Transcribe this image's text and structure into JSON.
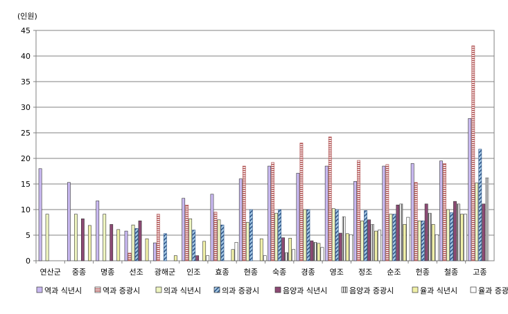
{
  "chart_data": {
    "type": "bar",
    "unit_label": "(인원)",
    "categories": [
      "연산군",
      "중종",
      "명종",
      "선조",
      "광해군",
      "인조",
      "효종",
      "현종",
      "숙종",
      "경종",
      "영조",
      "정조",
      "순조",
      "헌종",
      "철종",
      "고종"
    ],
    "ylim": [
      0,
      45
    ],
    "yticks": [
      0,
      5,
      10,
      15,
      20,
      25,
      30,
      35,
      40,
      45
    ],
    "grid": true,
    "legend_position": "bottom",
    "series": [
      {
        "name": "역과 식년시",
        "color": "#c8b8f0",
        "pattern": "solid",
        "values": [
          18,
          15.3,
          11.7,
          5.8,
          3.5,
          12.2,
          13,
          16,
          18.5,
          17.1,
          18.5,
          15.5,
          18.5,
          19,
          19.5,
          27.8
        ]
      },
      {
        "name": "역과 증광시",
        "color": "#b05050",
        "pattern": "hstripe",
        "values": [
          0,
          0,
          0,
          1.5,
          9.1,
          10.9,
          9.5,
          18.5,
          19.2,
          23,
          24.2,
          19.6,
          18.8,
          15.3,
          19,
          42
        ]
      },
      {
        "name": "의과 식년시",
        "color": "#eef5c0",
        "pattern": "solid",
        "values": [
          9.1,
          9.1,
          9.1,
          7,
          0,
          8.2,
          8,
          7.5,
          9.3,
          10,
          10.2,
          7.8,
          9.1,
          7.8,
          10,
          15.2
        ]
      },
      {
        "name": "의과 증광시",
        "color": "#6a88b8",
        "pattern": "diag",
        "values": [
          0,
          0,
          0,
          6.3,
          5.3,
          6,
          7,
          10,
          10,
          10,
          10,
          9.8,
          9.1,
          7.8,
          9.4,
          21.8
        ]
      },
      {
        "name": "음양과 식년시",
        "color": "#8c4a74",
        "pattern": "solid",
        "values": [
          0,
          8.2,
          7.1,
          7.8,
          0,
          1,
          0,
          0,
          4.5,
          3.9,
          5.4,
          8,
          10.9,
          11.1,
          11.6,
          11.1
        ]
      },
      {
        "name": "음양과 증광시",
        "color": "#666666",
        "pattern": "vstripe",
        "values": [
          0,
          0,
          0,
          0,
          0,
          0,
          0,
          0,
          1.6,
          3.6,
          8.6,
          7.1,
          11.1,
          9.3,
          11.1,
          16.2
        ]
      },
      {
        "name": "율과 식년시",
        "color": "#f0f0a8",
        "pattern": "solid",
        "values": [
          0,
          6.9,
          6.1,
          4.3,
          1,
          3.8,
          2.2,
          4.3,
          4.4,
          3.4,
          5.3,
          5.8,
          7.1,
          7.1,
          9.1,
          0
        ]
      },
      {
        "name": "율과 증광시",
        "color": "#ffffff",
        "pattern": "solid",
        "values": [
          0,
          0,
          0,
          0,
          0,
          1,
          3.6,
          1,
          2.2,
          2.6,
          5.1,
          6,
          8.5,
          5.1,
          9.1,
          0
        ]
      }
    ]
  }
}
